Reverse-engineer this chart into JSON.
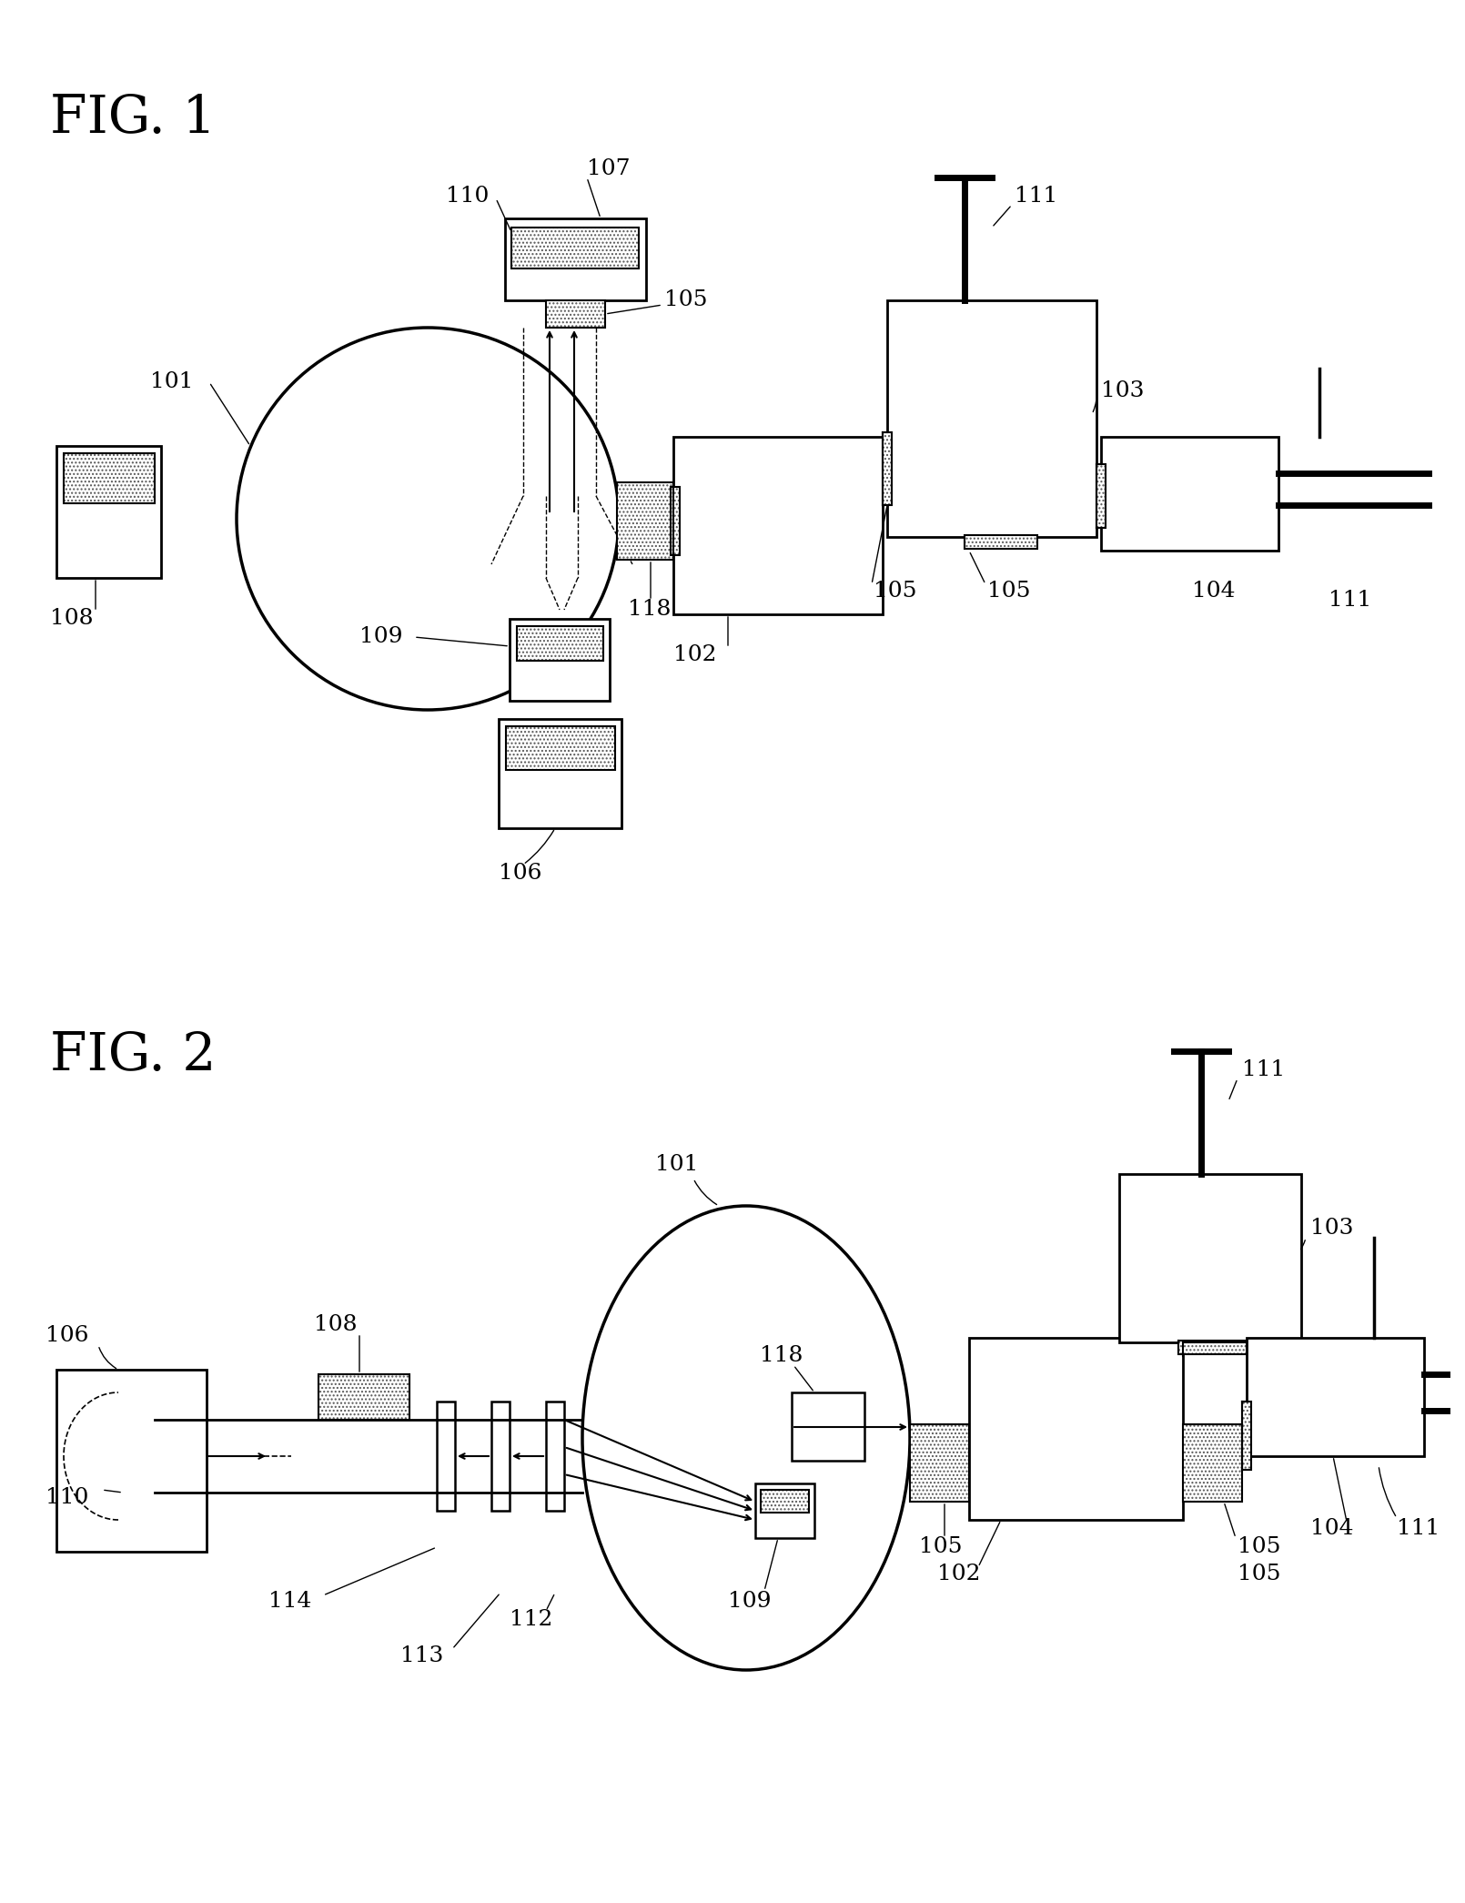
{
  "fig_width": 16.1,
  "fig_height": 20.91,
  "dpi": 100,
  "background": "#ffffff"
}
